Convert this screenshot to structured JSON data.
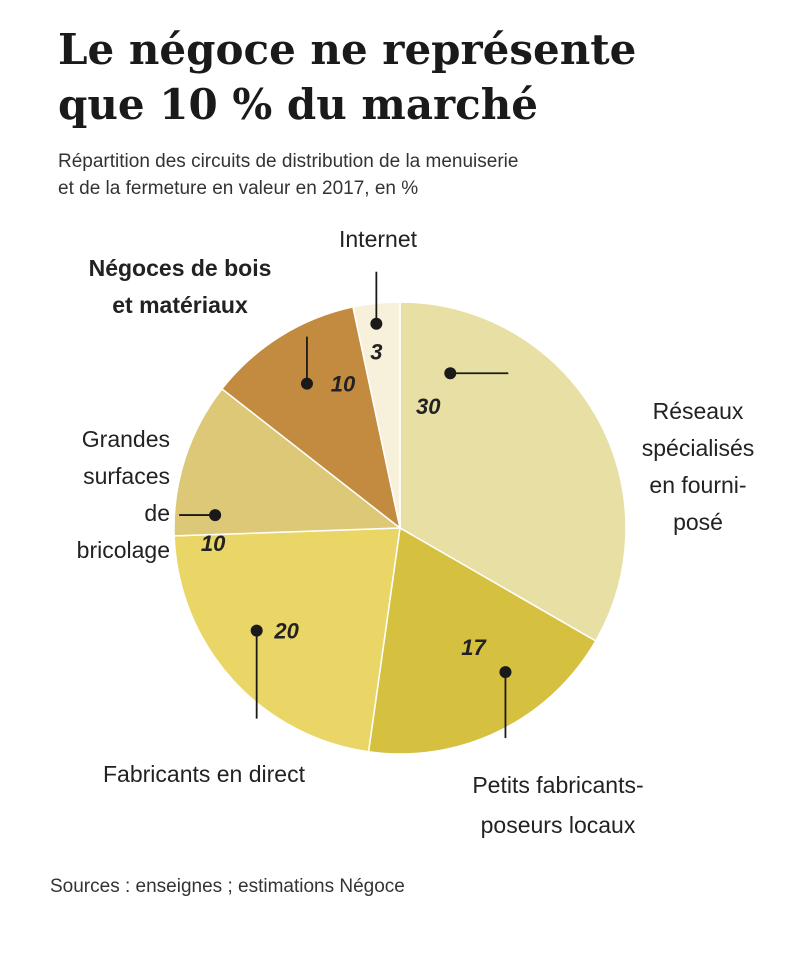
{
  "header": {
    "title_line1": "Le négoce ne représente",
    "title_line2": "que 10 % du marché",
    "subtitle_line1": "Répartition des circuits de distribution de la menuiserie",
    "subtitle_line2": "et de la fermeture en valeur en 2017, en %"
  },
  "footer": {
    "source": "Sources : enseignes ; estimations Négoce"
  },
  "chart_data": {
    "type": "pie",
    "unit": "%",
    "slices": [
      {
        "key": "reseaux",
        "label_lines": [
          "Réseaux",
          "spécialisés",
          "en fourni-",
          "posé"
        ],
        "value": 30,
        "color": "#e8dfa4"
      },
      {
        "key": "petits",
        "label_lines": [
          "Petits fabricants-",
          "poseurs locaux"
        ],
        "value": 17,
        "color": "#d6c040"
      },
      {
        "key": "fabricants",
        "label_lines": [
          "Fabricants en direct"
        ],
        "value": 20,
        "color": "#e9d666"
      },
      {
        "key": "grandes",
        "label_lines": [
          "Grandes",
          "surfaces",
          "de",
          "bricolage"
        ],
        "value": 10,
        "color": "#ddc877"
      },
      {
        "key": "negoces",
        "label_lines": [
          "Négoces de bois",
          "et matériaux"
        ],
        "value": 10,
        "color": "#c38b3f",
        "label_color": "#b88636"
      },
      {
        "key": "internet",
        "label_lines": [
          "Internet"
        ],
        "value": 3,
        "color": "#f7f0da"
      }
    ]
  }
}
